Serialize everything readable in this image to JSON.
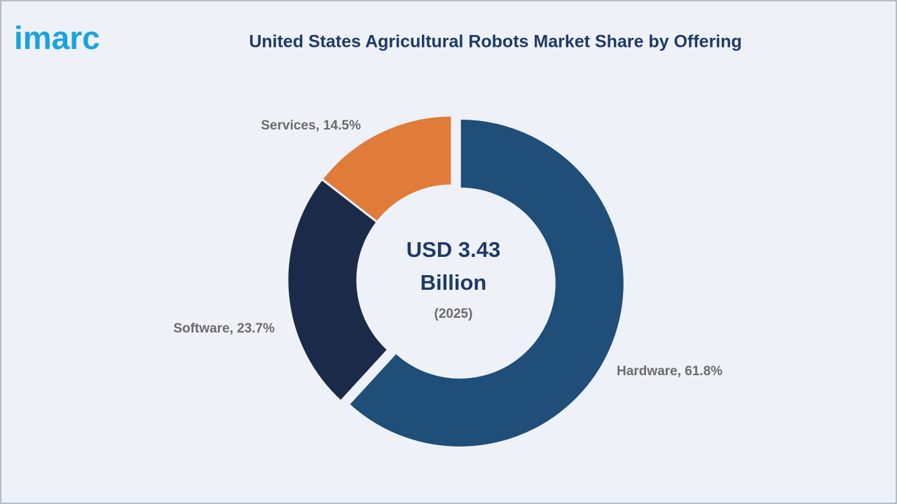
{
  "logo": "imarc",
  "chart_data": {
    "type": "donut",
    "title": "United States Agricultural Robots Market Share by Offering",
    "categories": [
      "Hardware",
      "Software",
      "Services"
    ],
    "values": [
      61.8,
      23.7,
      14.5
    ],
    "value_labels": [
      "Hardware, 61.8%",
      "Software, 23.7%",
      "Services, 14.5%"
    ],
    "colors": [
      "#1f4e79",
      "#1c2a4a",
      "#e07b39"
    ],
    "center_lines": [
      "USD 3.43",
      "Billion"
    ],
    "center_sublabel": "(2025)"
  }
}
